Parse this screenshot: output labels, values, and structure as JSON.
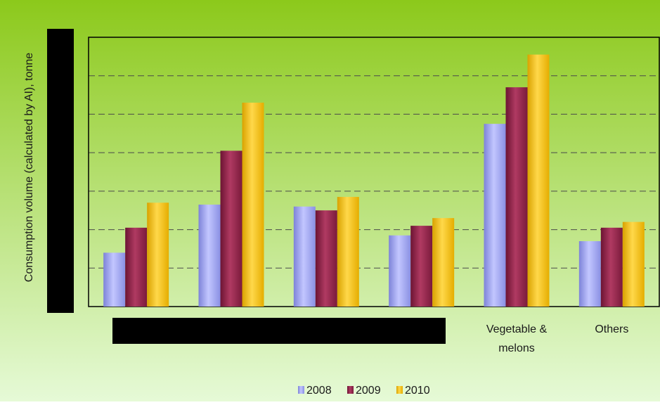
{
  "chart_data": {
    "type": "bar",
    "ylabel": "Consumption volume (calculated by AI), tonne",
    "categories": [
      "",
      "",
      "",
      "",
      "Vegetable & melons",
      "Others"
    ],
    "series": [
      {
        "name": "2008",
        "values": [
          1.4,
          2.65,
          2.6,
          1.85,
          4.75,
          1.7
        ]
      },
      {
        "name": "2009",
        "values": [
          2.05,
          4.05,
          2.5,
          2.1,
          5.7,
          2.05
        ]
      },
      {
        "name": "2010",
        "values": [
          2.7,
          5.3,
          2.85,
          2.3,
          6.55,
          2.2
        ]
      }
    ],
    "ylim": [
      0,
      7
    ],
    "y_grid_ticks": [
      1,
      2,
      3,
      4,
      5,
      6
    ],
    "grid": true,
    "legend": "bottom",
    "colors": {
      "bg_top": "#8cc91b",
      "bg_bottom": "#e6fad7",
      "series": [
        "#9aa0ec",
        "#8e2146",
        "#f2bd00"
      ],
      "gridline": "#4a4a4a",
      "redaction": "#000000"
    }
  }
}
